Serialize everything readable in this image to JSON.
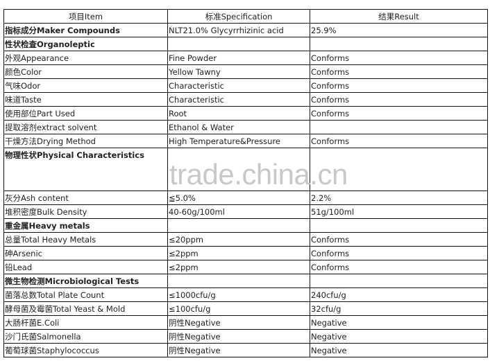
{
  "header": [
    "项目Item",
    "标准Specification",
    "结果Result"
  ],
  "rows": [
    {
      "item": "指标成分Maker Compounds",
      "spec": "NLT21.0% Glycyrrhizinic acid",
      "result": "25.9%",
      "section": true
    },
    {
      "item": "性状检查Organoleptic",
      "spec": "",
      "result": "",
      "section": true
    },
    {
      "item": "外观Appearance",
      "spec": "Fine Powder",
      "result": "Conforms"
    },
    {
      "item": "颜色Color",
      "spec": "Yellow Tawny",
      "result": "Conforms"
    },
    {
      "item": "气味Odor",
      "spec": "Characteristic",
      "result": "Conforms"
    },
    {
      "item": "味道Taste",
      "spec": "Characteristic",
      "result": "Conforms"
    },
    {
      "item": "使用部位Part Used",
      "spec": "Root",
      "result": "Conforms"
    },
    {
      "item": "提取溶剂extract solvent",
      "spec": "Ethanol & Water",
      "result": ""
    },
    {
      "item": "干燥方法Drying Method",
      "spec": "High Temperature&Pressure",
      "result": "Conforms"
    },
    {
      "item": "物理性状Physical Characteristics",
      "spec": "",
      "result": "",
      "section": true,
      "tall": true
    },
    {
      "item": "灰分Ash content",
      "spec": "≦5.0%",
      "result": "2.2%"
    },
    {
      "item": "堆积密度Bulk Density",
      "spec": "40-60g/100ml",
      "result": "51g/100ml"
    },
    {
      "item": "重金属Heavy metals",
      "spec": "",
      "result": "",
      "section": true
    },
    {
      "item": "总量Total Heavy Metals",
      "spec": "≤20ppm",
      "result": "Conforms"
    },
    {
      "item": "砷Arsenic",
      "spec": "≤2ppm",
      "result": "Conforms"
    },
    {
      "item": "铅Lead",
      "spec": "≤2ppm",
      "result": "Conforms"
    },
    {
      "item": "微生物检测Microbiological Tests",
      "spec": "",
      "result": "",
      "section": true
    },
    {
      "item": "菌落总数Total Plate Count",
      "spec": "≤1000cfu/g",
      "result": "240cfu/g"
    },
    {
      "item": "酵母菌及霉菌Total Yeast & Mold",
      "spec": "≤100cfu/g",
      "result": "32cfu/g"
    },
    {
      "item": "大肠杆菌E.Coli",
      "spec": "阴性Negative",
      "result": "Negative"
    },
    {
      "item": "沙门氏菌Salmonella",
      "spec": "阴性Negative",
      "result": "Negative"
    },
    {
      "item": "葡萄球菌Staphylococcus",
      "spec": "阴性Negative",
      "result": "Negative"
    }
  ],
  "watermark": "trade.china.cn"
}
